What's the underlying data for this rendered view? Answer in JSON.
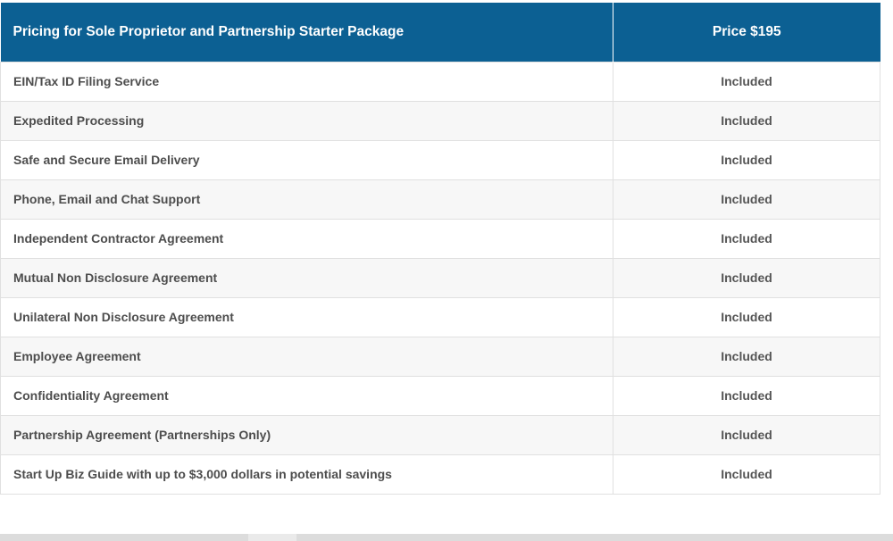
{
  "colors": {
    "header_bg": "#0c6093",
    "header_text": "#ffffff",
    "row_alt_bg": "#f7f7f7",
    "body_text": "#4d4d4d"
  },
  "table": {
    "header": {
      "title": "Pricing for Sole Proprietor and Partnership Starter Package",
      "price": "Price $195"
    },
    "rows": [
      {
        "feature": "EIN/Tax ID Filing Service",
        "status": "Included"
      },
      {
        "feature": "Expedited Processing",
        "status": "Included"
      },
      {
        "feature": "Safe and Secure Email Delivery",
        "status": "Included"
      },
      {
        "feature": "Phone, Email and Chat Support",
        "status": "Included"
      },
      {
        "feature": "Independent Contractor Agreement",
        "status": "Included"
      },
      {
        "feature": "Mutual Non Disclosure Agreement",
        "status": "Included"
      },
      {
        "feature": "Unilateral Non Disclosure Agreement",
        "status": "Included"
      },
      {
        "feature": "Employee Agreement",
        "status": "Included"
      },
      {
        "feature": "Confidentiality Agreement",
        "status": "Included"
      },
      {
        "feature": "Partnership Agreement (Partnerships Only)",
        "status": "Included"
      },
      {
        "feature": "Start Up Biz Guide with up to $3,000 dollars in potential savings",
        "status": "Included"
      }
    ]
  }
}
